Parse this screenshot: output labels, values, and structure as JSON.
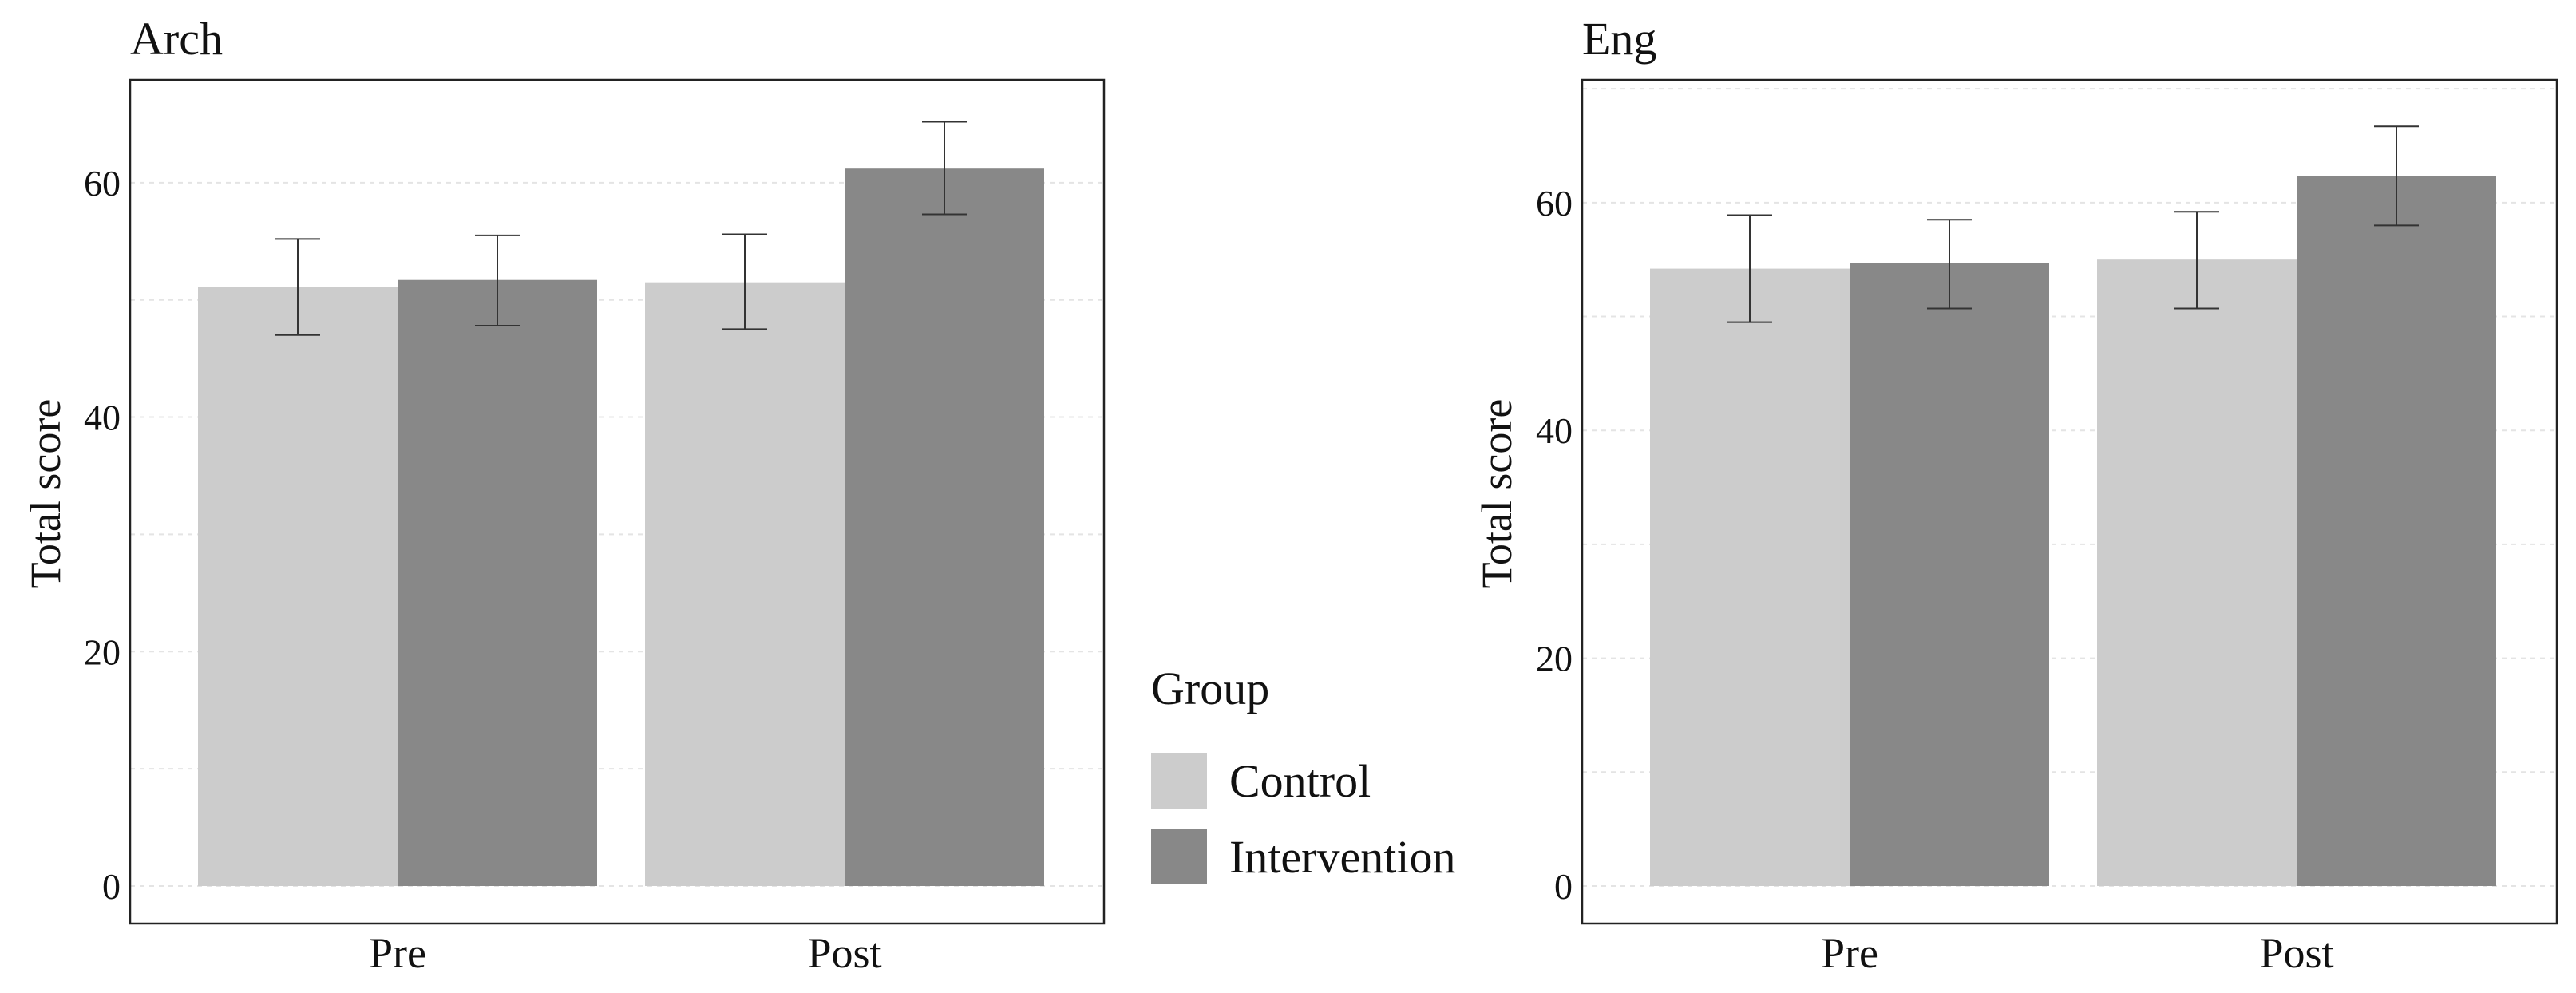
{
  "legend": {
    "title": "Group",
    "items": [
      {
        "label": "Control",
        "color": "#cccccc"
      },
      {
        "label": "Intervention",
        "color": "#888888"
      }
    ]
  },
  "chart_data": [
    {
      "type": "bar",
      "title": "Arch",
      "xlabel": "",
      "ylabel": "Total score",
      "categories": [
        "Pre",
        "Post"
      ],
      "ylim": [
        0,
        68.5
      ],
      "yticks": [
        0,
        20,
        40,
        60
      ],
      "grid": true,
      "series": [
        {
          "name": "Control",
          "color": "#cccccc",
          "values": [
            51.1,
            51.5
          ],
          "err_low": [
            47.0,
            47.5
          ],
          "err_high": [
            55.2,
            55.6
          ]
        },
        {
          "name": "Intervention",
          "color": "#888888",
          "values": [
            51.7,
            61.2
          ],
          "err_low": [
            47.8,
            57.3
          ],
          "err_high": [
            55.5,
            65.2
          ]
        }
      ]
    },
    {
      "type": "bar",
      "title": "Eng",
      "xlabel": "",
      "ylabel": "Total score",
      "categories": [
        "Pre",
        "Post"
      ],
      "ylim": [
        0,
        70.5
      ],
      "yticks": [
        0,
        20,
        40,
        60
      ],
      "grid": true,
      "series": [
        {
          "name": "Control",
          "color": "#cccccc",
          "values": [
            54.2,
            55.0
          ],
          "err_low": [
            49.5,
            50.7
          ],
          "err_high": [
            58.9,
            59.2
          ]
        },
        {
          "name": "Intervention",
          "color": "#888888",
          "values": [
            54.7,
            62.3
          ],
          "err_low": [
            50.7,
            58.0
          ],
          "err_high": [
            58.5,
            66.7
          ]
        }
      ]
    }
  ]
}
